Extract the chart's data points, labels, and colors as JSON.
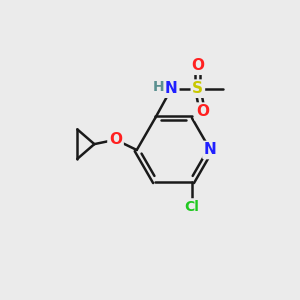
{
  "background_color": "#ebebeb",
  "bond_color": "#1a1a1a",
  "atom_colors": {
    "N": "#2020ff",
    "O": "#ff2020",
    "S": "#c8c800",
    "Cl": "#20c820",
    "C": "#1a1a1a",
    "H": "#5a9090"
  },
  "figsize": [
    3.0,
    3.0
  ],
  "dpi": 100
}
